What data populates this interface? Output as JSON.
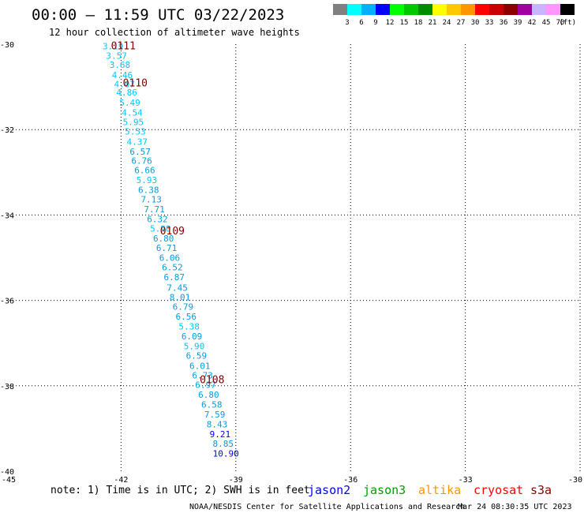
{
  "header": {
    "title": "00:00 – 11:59 UTC 03/22/2023",
    "subtitle": "12 hour collection of altimeter wave heights"
  },
  "colorbar": {
    "ticks": [
      "3",
      "6",
      "9",
      "12",
      "15",
      "18",
      "21",
      "24",
      "27",
      "30",
      "33",
      "36",
      "39",
      "42",
      "45",
      "70"
    ],
    "unit": "(ft)",
    "colors": [
      "#808080",
      "#00ffff",
      "#00b0ff",
      "#0000ff",
      "#00ff00",
      "#00c800",
      "#008c00",
      "#ffff00",
      "#ffc800",
      "#ff9600",
      "#ff0000",
      "#c80000",
      "#8c0000",
      "#a000a0",
      "#c8b4ff",
      "#ff96ff",
      "#000000"
    ]
  },
  "footer": {
    "note": "note: 1) Time is in UTC; 2) SWH is in feet",
    "satellites": [
      {
        "name": "jason2",
        "color": "#0000ff"
      },
      {
        "name": "jason3",
        "color": "#00a000"
      },
      {
        "name": "altika",
        "color": "#ff9600"
      },
      {
        "name": "cryosat",
        "color": "#ff0000"
      },
      {
        "name": "s3a",
        "color": "#8c0000"
      }
    ],
    "credit": "NOAA/NESDIS Center for Satellite Applications and Research",
    "timestamp": "Mar 24 08:30:35 UTC 2023"
  },
  "chart_data": {
    "type": "scatter",
    "title": "00:00 – 11:59 UTC 03/22/2023",
    "subtitle": "12 hour collection of altimeter wave heights",
    "xlim": [
      -45,
      -30
    ],
    "ylim": [
      -40,
      -30
    ],
    "x_ticks": [
      -45,
      -42,
      -39,
      -36,
      -33,
      -30
    ],
    "y_ticks": [
      -30,
      -32,
      -34,
      -36,
      -38,
      -40
    ],
    "x_tick_labels": [
      "-45",
      "-42",
      "-39",
      "-36",
      "-33",
      "-30"
    ],
    "y_tick_labels": [
      "-30",
      "-32",
      "-34",
      "-36",
      "-38",
      "-40"
    ],
    "grid": true,
    "color_thresholds": [
      3,
      6,
      9,
      12
    ],
    "color_scale": [
      "#808080",
      "#00c8ff",
      "#00a0e0",
      "#0000ff",
      "#0000c0"
    ],
    "points": [
      {
        "x": -42.21,
        "y": -30.05,
        "label": "3.19"
      },
      {
        "x": -42.12,
        "y": -30.27,
        "label": "3.57"
      },
      {
        "x": -42.03,
        "y": -30.48,
        "label": "3.68"
      },
      {
        "x": -41.97,
        "y": -30.72,
        "label": "4.46"
      },
      {
        "x": -41.91,
        "y": -30.93,
        "label": "4.07"
      },
      {
        "x": -41.85,
        "y": -31.13,
        "label": "4.86"
      },
      {
        "x": -41.77,
        "y": -31.37,
        "label": "5.49"
      },
      {
        "x": -41.71,
        "y": -31.6,
        "label": "4.54"
      },
      {
        "x": -41.68,
        "y": -31.82,
        "label": "5.95"
      },
      {
        "x": -41.63,
        "y": -32.04,
        "label": "5.53"
      },
      {
        "x": -41.58,
        "y": -32.28,
        "label": "4.37"
      },
      {
        "x": -41.5,
        "y": -32.51,
        "label": "6.57"
      },
      {
        "x": -41.46,
        "y": -32.73,
        "label": "6.76"
      },
      {
        "x": -41.38,
        "y": -32.95,
        "label": "6.66"
      },
      {
        "x": -41.33,
        "y": -33.18,
        "label": "5.93"
      },
      {
        "x": -41.28,
        "y": -33.41,
        "label": "6.38"
      },
      {
        "x": -41.21,
        "y": -33.63,
        "label": "7.13"
      },
      {
        "x": -41.13,
        "y": -33.86,
        "label": "7.71"
      },
      {
        "x": -41.05,
        "y": -34.09,
        "label": "6.32"
      },
      {
        "x": -40.97,
        "y": -34.32,
        "label": "5.90"
      },
      {
        "x": -40.89,
        "y": -34.55,
        "label": "6.80"
      },
      {
        "x": -40.81,
        "y": -34.77,
        "label": "6.71"
      },
      {
        "x": -40.73,
        "y": -35.0,
        "label": "6.06"
      },
      {
        "x": -40.66,
        "y": -35.22,
        "label": "6.52"
      },
      {
        "x": -40.61,
        "y": -35.45,
        "label": "6.87"
      },
      {
        "x": -40.53,
        "y": -35.7,
        "label": "7.45"
      },
      {
        "x": -40.46,
        "y": -35.92,
        "label": "8.01"
      },
      {
        "x": -40.38,
        "y": -36.15,
        "label": "6.79"
      },
      {
        "x": -40.3,
        "y": -36.38,
        "label": "6.56"
      },
      {
        "x": -40.22,
        "y": -36.61,
        "label": "5.38"
      },
      {
        "x": -40.15,
        "y": -36.84,
        "label": "6.09"
      },
      {
        "x": -40.09,
        "y": -37.07,
        "label": "5.90"
      },
      {
        "x": -40.03,
        "y": -37.29,
        "label": "6.59"
      },
      {
        "x": -39.94,
        "y": -37.53,
        "label": "6.01"
      },
      {
        "x": -39.87,
        "y": -37.75,
        "label": "6.73"
      },
      {
        "x": -39.79,
        "y": -37.98,
        "label": "6.97"
      },
      {
        "x": -39.71,
        "y": -38.21,
        "label": "6.80"
      },
      {
        "x": -39.63,
        "y": -38.44,
        "label": "6.58"
      },
      {
        "x": -39.55,
        "y": -38.67,
        "label": "7.59"
      },
      {
        "x": -39.49,
        "y": -38.9,
        "label": "8.43"
      },
      {
        "x": -39.41,
        "y": -39.13,
        "label": "9.21"
      },
      {
        "x": -39.33,
        "y": -39.35,
        "label": "8.85"
      },
      {
        "x": -39.26,
        "y": -39.58,
        "label": "10.90"
      }
    ],
    "pass_labels": [
      {
        "x": -41.94,
        "y": -30.03,
        "label": "0111"
      },
      {
        "x": -41.63,
        "y": -30.9,
        "label": "0110"
      },
      {
        "x": -40.66,
        "y": -34.36,
        "label": "0109"
      },
      {
        "x": -39.62,
        "y": -37.85,
        "label": "0108"
      }
    ]
  }
}
